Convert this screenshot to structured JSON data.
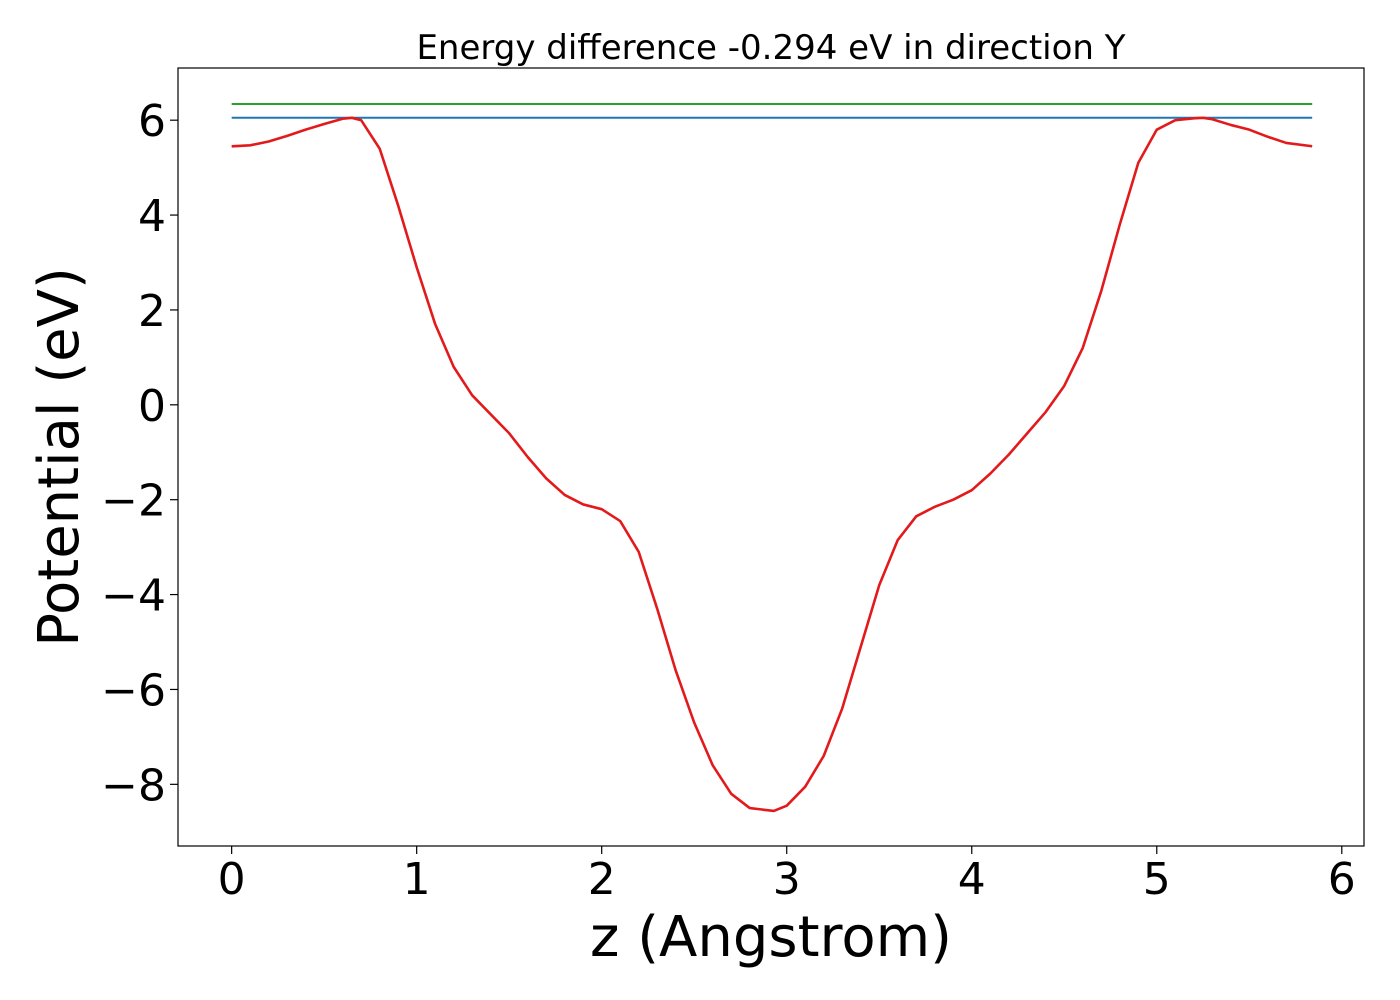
{
  "chart_data": {
    "type": "line",
    "title": "Energy difference -0.294 eV in direction Y",
    "xlabel": "z (Angstrom)",
    "ylabel": "Potential (eV)",
    "xlim": [
      -0.29,
      6.12
    ],
    "ylim": [
      -9.3,
      7.1
    ],
    "xticks": [
      0,
      1,
      2,
      3,
      4,
      5,
      6
    ],
    "xtick_labels": [
      "0",
      "1",
      "2",
      "3",
      "4",
      "5",
      "6"
    ],
    "yticks": [
      6,
      4,
      2,
      0,
      -2,
      -4,
      -6,
      -8
    ],
    "ytick_labels": [
      "6",
      "4",
      "2",
      "0",
      "−2",
      "−4",
      "−6",
      "−8"
    ],
    "grid": false,
    "series": [
      {
        "color": "#2ca02c",
        "x": [
          0,
          5.84
        ],
        "y": [
          6.34,
          6.34
        ]
      },
      {
        "color": "#1f77b4",
        "x": [
          0,
          5.84
        ],
        "y": [
          6.05,
          6.05
        ]
      },
      {
        "color": "#e31a1c",
        "x": [
          0,
          0.1,
          0.2,
          0.3,
          0.4,
          0.5,
          0.6,
          0.65,
          0.7,
          0.8,
          0.9,
          1.0,
          1.1,
          1.2,
          1.3,
          1.4,
          1.5,
          1.6,
          1.7,
          1.8,
          1.9,
          2.0,
          2.1,
          2.2,
          2.3,
          2.4,
          2.5,
          2.6,
          2.7,
          2.8,
          2.93,
          3.0,
          3.1,
          3.2,
          3.3,
          3.4,
          3.5,
          3.6,
          3.7,
          3.8,
          3.9,
          4.0,
          4.1,
          4.2,
          4.3,
          4.4,
          4.5,
          4.6,
          4.7,
          4.8,
          4.9,
          5.0,
          5.1,
          5.2,
          5.25,
          5.3,
          5.4,
          5.5,
          5.6,
          5.7,
          5.84
        ],
        "y": [
          5.45,
          5.47,
          5.55,
          5.67,
          5.8,
          5.92,
          6.03,
          6.05,
          6.0,
          5.4,
          4.2,
          2.9,
          1.7,
          0.8,
          0.2,
          -0.2,
          -0.6,
          -1.1,
          -1.55,
          -1.9,
          -2.1,
          -2.2,
          -2.45,
          -3.1,
          -4.3,
          -5.6,
          -6.7,
          -7.6,
          -8.2,
          -8.5,
          -8.56,
          -8.45,
          -8.05,
          -7.4,
          -6.4,
          -5.1,
          -3.8,
          -2.85,
          -2.35,
          -2.15,
          -2.0,
          -1.8,
          -1.45,
          -1.05,
          -0.6,
          -0.15,
          0.4,
          1.2,
          2.4,
          3.8,
          5.1,
          5.8,
          6.0,
          6.04,
          6.05,
          6.02,
          5.9,
          5.8,
          5.65,
          5.52,
          5.45
        ]
      }
    ]
  }
}
